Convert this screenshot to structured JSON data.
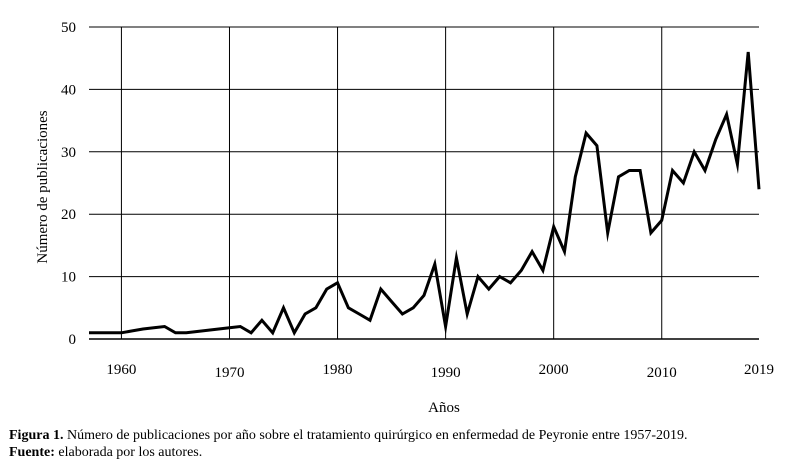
{
  "chart_data": {
    "type": "line",
    "title": "",
    "xlabel": "Años",
    "ylabel": "Número de publicaciones",
    "xlim": [
      1957,
      2019
    ],
    "ylim": [
      0,
      50
    ],
    "x_ticks": [
      1960,
      1970,
      1980,
      1990,
      2000,
      2010,
      2019
    ],
    "y_ticks": [
      0,
      10,
      20,
      30,
      40,
      50
    ],
    "grid": "vertical lines at decades, horizontal lines at y ticks",
    "legend": "none",
    "series": [
      {
        "x": [
          1957,
          1958,
          1959,
          1960,
          1961,
          1962,
          1963,
          1964,
          1965,
          1966,
          1967,
          1968,
          1969,
          1970,
          1971,
          1972,
          1973,
          1974,
          1975,
          1976,
          1977,
          1978,
          1979,
          1980,
          1981,
          1982,
          1983,
          1984,
          1985,
          1986,
          1987,
          1988,
          1989,
          1990,
          1991,
          1992,
          1993,
          1994,
          1995,
          1996,
          1997,
          1998,
          1999,
          2000,
          2001,
          2002,
          2003,
          2004,
          2005,
          2006,
          2007,
          2008,
          2009,
          2010,
          2011,
          2012,
          2013,
          2014,
          2015,
          2016,
          2017,
          2018,
          2019
        ],
        "y": [
          1,
          1,
          1,
          1,
          1.3,
          1.6,
          1.8,
          2,
          1,
          1,
          1.2,
          1.4,
          1.6,
          1.8,
          2,
          1,
          3,
          1,
          5,
          1,
          4,
          5,
          8,
          9,
          5,
          4,
          3,
          8,
          6,
          4,
          5,
          7,
          12,
          2,
          13,
          4,
          10,
          8,
          10,
          9,
          11,
          14,
          11,
          18,
          14,
          26,
          33,
          31,
          17,
          26,
          27,
          27,
          17,
          19,
          27,
          25,
          30,
          27,
          32,
          36,
          28,
          46,
          24
        ]
      }
    ]
  },
  "caption": {
    "figure_label": "Figura 1.",
    "figure_text": " Número de publicaciones por año sobre el tratamiento quirúrgico en enfermedad de Peyronie entre 1957-2019.",
    "source_label": "Fuente:",
    "source_text": " elaborada por los autores."
  },
  "colors": {
    "line": "#000000",
    "grid": "#000000",
    "background": "#ffffff"
  }
}
